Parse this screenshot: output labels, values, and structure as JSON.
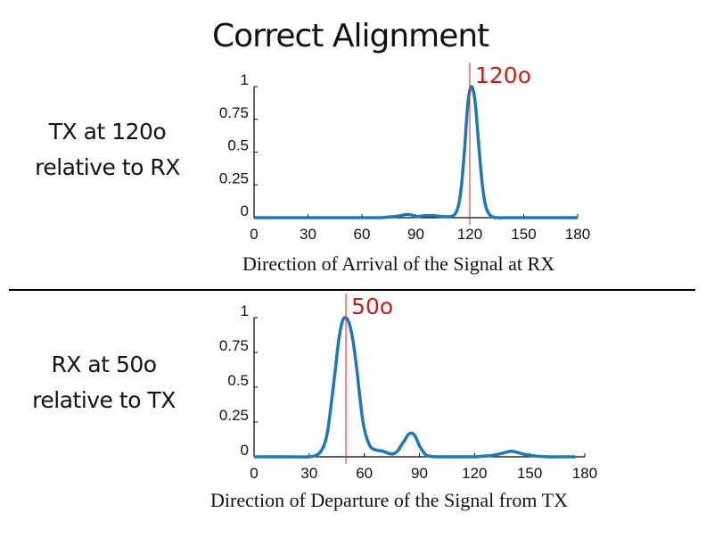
{
  "title": "Correct Alignment",
  "chart_data": [
    {
      "type": "line",
      "side_label_lines": [
        "TX at 120o",
        "relative to RX"
      ],
      "xlabel": "Direction of Arrival of the Signal at RX",
      "xlim": [
        0,
        180
      ],
      "ylim": [
        0,
        1
      ],
      "xticks": [
        "0",
        "30",
        "60",
        "90",
        "120",
        "150",
        "180"
      ],
      "yticks": [
        "0",
        "0.25",
        "0.5",
        "0.75",
        "1"
      ],
      "marker": {
        "x": 120,
        "label": "120o"
      },
      "line_color": "#1f77b4",
      "marker_color": "#d62728",
      "x": [
        0,
        20,
        40,
        60,
        70,
        75,
        80,
        83,
        85,
        88,
        90,
        95,
        100,
        104,
        110,
        113,
        115,
        117,
        119,
        121,
        123,
        125,
        127,
        129,
        132,
        136,
        140,
        160,
        180
      ],
      "y": [
        0,
        0,
        0,
        0,
        0,
        0.005,
        0.012,
        0.02,
        0.025,
        0.02,
        0.008,
        0.015,
        0.015,
        0.01,
        0.01,
        0.06,
        0.2,
        0.5,
        0.88,
        1.0,
        0.88,
        0.55,
        0.25,
        0.08,
        0.01,
        0,
        0,
        0,
        0
      ]
    },
    {
      "type": "line",
      "side_label_lines": [
        "RX at 50o",
        "relative to TX"
      ],
      "xlabel": "Direction of Departure of the Signal from TX",
      "xlim": [
        0,
        180
      ],
      "ylim": [
        0,
        1
      ],
      "xticks": [
        "0",
        "30",
        "60",
        "90",
        "120",
        "150",
        "180"
      ],
      "yticks": [
        "0",
        "0.25",
        "0.5",
        "0.75",
        "1"
      ],
      "marker": {
        "x": 50,
        "label": "50o"
      },
      "line_color": "#1f77b4",
      "marker_color": "#d62728",
      "x": [
        0,
        20,
        30,
        35,
        38,
        40,
        42,
        44,
        46,
        48,
        50,
        52,
        54,
        56,
        58,
        60,
        63,
        66,
        70,
        75,
        78,
        80,
        82,
        84,
        86,
        88,
        90,
        93,
        95,
        100,
        110,
        120,
        125,
        130,
        135,
        140,
        145,
        150,
        160,
        170,
        175
      ],
      "y": [
        0,
        0,
        0,
        0.02,
        0.08,
        0.18,
        0.38,
        0.6,
        0.83,
        0.97,
        1.0,
        0.95,
        0.82,
        0.62,
        0.38,
        0.2,
        0.08,
        0.05,
        0.04,
        0.02,
        0.04,
        0.08,
        0.12,
        0.16,
        0.17,
        0.14,
        0.08,
        0.02,
        0.005,
        0,
        0,
        0,
        0.005,
        0.01,
        0.025,
        0.04,
        0.025,
        0.01,
        0,
        0,
        0
      ]
    }
  ]
}
